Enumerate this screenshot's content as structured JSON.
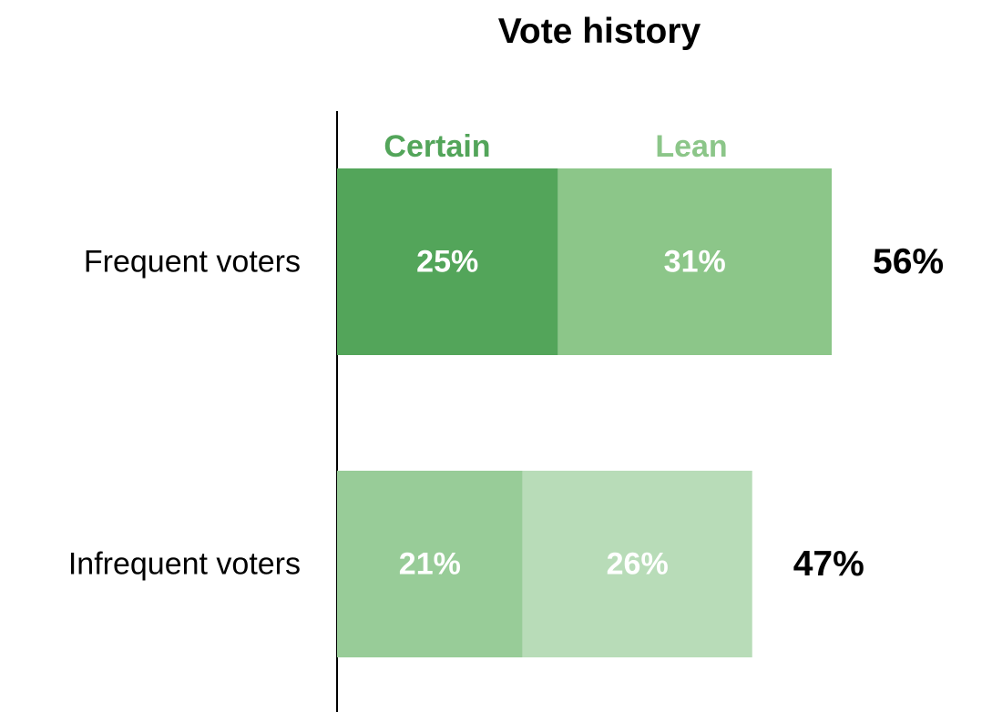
{
  "chart_data": {
    "type": "bar",
    "orientation": "horizontal",
    "stacked": true,
    "title": "Vote history",
    "xlabel": "",
    "ylabel": "",
    "xlim": [
      0,
      56
    ],
    "grid": false,
    "legend": {
      "placement": "top",
      "entries": [
        "Certain",
        "Lean"
      ]
    },
    "categories": [
      "Frequent voters",
      "Infrequent voters"
    ],
    "series": [
      {
        "name": "Certain",
        "values": [
          25,
          21
        ],
        "labels": [
          "25%",
          "21%"
        ],
        "colors": [
          "#53a55a",
          "#98cc98"
        ]
      },
      {
        "name": "Lean",
        "values": [
          31,
          26
        ],
        "labels": [
          "31%",
          "26%"
        ],
        "colors": [
          "#8cc689",
          "#b8dcb8"
        ]
      }
    ],
    "totals": [
      56,
      47
    ],
    "total_labels": [
      "56%",
      "47%"
    ],
    "legend_colors": [
      "#53a55a",
      "#8cc689"
    ]
  }
}
